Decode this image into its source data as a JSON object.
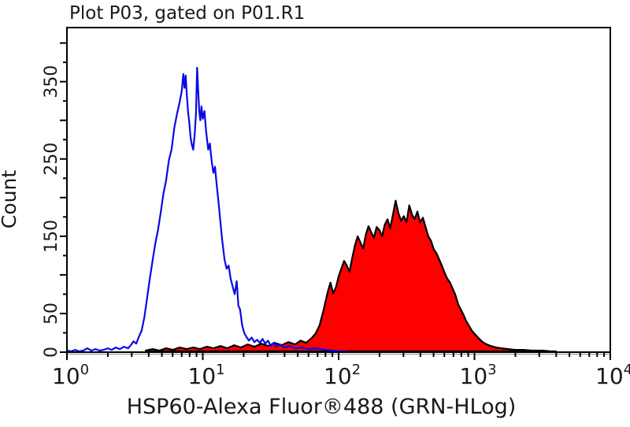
{
  "plot": {
    "title": "Plot P03, gated on P01.R1",
    "x_axis_label": "HSP60-Alexa Fluor®488 (GRN-HLog)",
    "y_axis_label": "Count"
  },
  "colors": {
    "background": "#FFFFFF",
    "axis": "#000000",
    "axis_shadow": "#8c8c8c",
    "text": "#1a1a1a",
    "blue_series": "#0808E8",
    "red_fill": "#FF0000",
    "red_outline": "#000000"
  },
  "chart_data": {
    "type": "area",
    "subtype": "flow-cytometry-histogram-overlay",
    "title": "Plot P03, gated on P01.R1",
    "xlabel": "HSP60-Alexa Fluor®488 (GRN-HLog)",
    "ylabel": "Count",
    "x_scale": "log10",
    "xlim_log10": [
      0,
      4
    ],
    "x_decade_tick_exponents": [
      0,
      1,
      2,
      3,
      4
    ],
    "x_minor_ticks_per_decade": [
      2,
      3,
      4,
      5,
      6,
      7,
      8,
      9
    ],
    "ylim": [
      0,
      420
    ],
    "y_minor_tick_step": 25,
    "y_major_tick_step": 50,
    "y_labeled_ticks": [
      0,
      50,
      150,
      250,
      350
    ],
    "grid": false,
    "legend": "none",
    "series": [
      {
        "name": "red-filled-histogram",
        "style": "filled",
        "fill_color": "#FF0000",
        "outline_color": "#000000",
        "peak_count": 196,
        "peak_x_log10": 2.42,
        "points": [
          [
            0.58,
            2
          ],
          [
            0.63,
            4
          ],
          [
            0.68,
            2
          ],
          [
            0.73,
            5
          ],
          [
            0.78,
            3
          ],
          [
            0.83,
            6
          ],
          [
            0.88,
            4
          ],
          [
            0.93,
            6
          ],
          [
            0.98,
            4
          ],
          [
            1.03,
            7
          ],
          [
            1.08,
            5
          ],
          [
            1.13,
            8
          ],
          [
            1.18,
            5
          ],
          [
            1.23,
            9
          ],
          [
            1.28,
            6
          ],
          [
            1.33,
            10
          ],
          [
            1.38,
            7
          ],
          [
            1.43,
            11
          ],
          [
            1.48,
            8
          ],
          [
            1.53,
            12
          ],
          [
            1.58,
            9
          ],
          [
            1.63,
            13
          ],
          [
            1.68,
            10
          ],
          [
            1.72,
            15
          ],
          [
            1.76,
            12
          ],
          [
            1.8,
            18
          ],
          [
            1.83,
            24
          ],
          [
            1.86,
            35
          ],
          [
            1.89,
            55
          ],
          [
            1.92,
            78
          ],
          [
            1.94,
            90
          ],
          [
            1.96,
            76
          ],
          [
            1.98,
            84
          ],
          [
            2.0,
            98
          ],
          [
            2.02,
            108
          ],
          [
            2.04,
            118
          ],
          [
            2.06,
            112
          ],
          [
            2.08,
            104
          ],
          [
            2.1,
            122
          ],
          [
            2.12,
            138
          ],
          [
            2.14,
            150
          ],
          [
            2.16,
            142
          ],
          [
            2.18,
            134
          ],
          [
            2.2,
            152
          ],
          [
            2.22,
            163
          ],
          [
            2.24,
            155
          ],
          [
            2.26,
            148
          ],
          [
            2.28,
            162
          ],
          [
            2.3,
            158
          ],
          [
            2.32,
            150
          ],
          [
            2.34,
            165
          ],
          [
            2.36,
            172
          ],
          [
            2.38,
            160
          ],
          [
            2.4,
            178
          ],
          [
            2.42,
            196
          ],
          [
            2.44,
            180
          ],
          [
            2.46,
            170
          ],
          [
            2.48,
            176
          ],
          [
            2.5,
            168
          ],
          [
            2.52,
            190
          ],
          [
            2.54,
            178
          ],
          [
            2.56,
            172
          ],
          [
            2.58,
            182
          ],
          [
            2.6,
            168
          ],
          [
            2.62,
            174
          ],
          [
            2.64,
            162
          ],
          [
            2.66,
            150
          ],
          [
            2.68,
            144
          ],
          [
            2.7,
            133
          ],
          [
            2.72,
            128
          ],
          [
            2.74,
            120
          ],
          [
            2.76,
            112
          ],
          [
            2.78,
            103
          ],
          [
            2.8,
            95
          ],
          [
            2.82,
            90
          ],
          [
            2.84,
            82
          ],
          [
            2.86,
            74
          ],
          [
            2.88,
            62
          ],
          [
            2.9,
            55
          ],
          [
            2.92,
            48
          ],
          [
            2.94,
            40
          ],
          [
            2.96,
            34
          ],
          [
            2.98,
            28
          ],
          [
            3.0,
            24
          ],
          [
            3.03,
            18
          ],
          [
            3.06,
            13
          ],
          [
            3.09,
            10
          ],
          [
            3.12,
            8
          ],
          [
            3.16,
            6
          ],
          [
            3.2,
            5
          ],
          [
            3.25,
            4
          ],
          [
            3.3,
            3
          ],
          [
            3.36,
            3
          ],
          [
            3.42,
            2
          ],
          [
            3.5,
            2
          ],
          [
            3.56,
            1
          ],
          [
            3.6,
            0
          ]
        ]
      },
      {
        "name": "blue-open-histogram",
        "style": "open",
        "color": "#0808E8",
        "peak_count": 368,
        "peak_x_log10": 0.958,
        "points": [
          [
            0.0,
            2
          ],
          [
            0.03,
            1
          ],
          [
            0.06,
            3
          ],
          [
            0.09,
            1
          ],
          [
            0.12,
            2
          ],
          [
            0.15,
            5
          ],
          [
            0.18,
            2
          ],
          [
            0.21,
            4
          ],
          [
            0.24,
            2
          ],
          [
            0.27,
            3
          ],
          [
            0.3,
            5
          ],
          [
            0.33,
            3
          ],
          [
            0.36,
            6
          ],
          [
            0.39,
            4
          ],
          [
            0.42,
            7
          ],
          [
            0.45,
            5
          ],
          [
            0.47,
            9
          ],
          [
            0.49,
            14
          ],
          [
            0.51,
            11
          ],
          [
            0.53,
            20
          ],
          [
            0.55,
            28
          ],
          [
            0.57,
            45
          ],
          [
            0.59,
            70
          ],
          [
            0.61,
            95
          ],
          [
            0.63,
            118
          ],
          [
            0.65,
            140
          ],
          [
            0.67,
            158
          ],
          [
            0.69,
            180
          ],
          [
            0.71,
            205
          ],
          [
            0.73,
            222
          ],
          [
            0.75,
            248
          ],
          [
            0.77,
            262
          ],
          [
            0.79,
            290
          ],
          [
            0.81,
            308
          ],
          [
            0.83,
            324
          ],
          [
            0.845,
            338
          ],
          [
            0.857,
            360
          ],
          [
            0.865,
            342
          ],
          [
            0.874,
            358
          ],
          [
            0.883,
            332
          ],
          [
            0.892,
            310
          ],
          [
            0.9,
            298
          ],
          [
            0.91,
            278
          ],
          [
            0.92,
            268
          ],
          [
            0.93,
            262
          ],
          [
            0.94,
            280
          ],
          [
            0.95,
            310
          ],
          [
            0.958,
            368
          ],
          [
            0.966,
            340
          ],
          [
            0.974,
            312
          ],
          [
            0.982,
            300
          ],
          [
            0.99,
            318
          ],
          [
            1.0,
            302
          ],
          [
            1.012,
            312
          ],
          [
            1.025,
            285
          ],
          [
            1.04,
            262
          ],
          [
            1.052,
            270
          ],
          [
            1.065,
            248
          ],
          [
            1.078,
            232
          ],
          [
            1.09,
            240
          ],
          [
            1.103,
            215
          ],
          [
            1.115,
            196
          ],
          [
            1.13,
            168
          ],
          [
            1.145,
            142
          ],
          [
            1.16,
            120
          ],
          [
            1.175,
            108
          ],
          [
            1.19,
            112
          ],
          [
            1.205,
            95
          ],
          [
            1.22,
            85
          ],
          [
            1.235,
            75
          ],
          [
            1.25,
            92
          ],
          [
            1.262,
            60
          ],
          [
            1.275,
            55
          ],
          [
            1.29,
            35
          ],
          [
            1.305,
            25
          ],
          [
            1.32,
            20
          ],
          [
            1.34,
            15
          ],
          [
            1.36,
            19
          ],
          [
            1.38,
            13
          ],
          [
            1.4,
            16
          ],
          [
            1.42,
            12
          ],
          [
            1.44,
            17
          ],
          [
            1.46,
            11
          ],
          [
            1.48,
            15
          ],
          [
            1.5,
            8
          ],
          [
            1.52,
            12
          ],
          [
            1.54,
            7
          ],
          [
            1.57,
            10
          ],
          [
            1.6,
            6
          ],
          [
            1.64,
            8
          ],
          [
            1.68,
            5
          ],
          [
            1.73,
            6
          ],
          [
            1.78,
            4
          ],
          [
            1.84,
            5
          ],
          [
            1.9,
            3
          ],
          [
            1.96,
            2
          ],
          [
            2.02,
            1
          ],
          [
            2.08,
            0
          ]
        ]
      }
    ]
  }
}
